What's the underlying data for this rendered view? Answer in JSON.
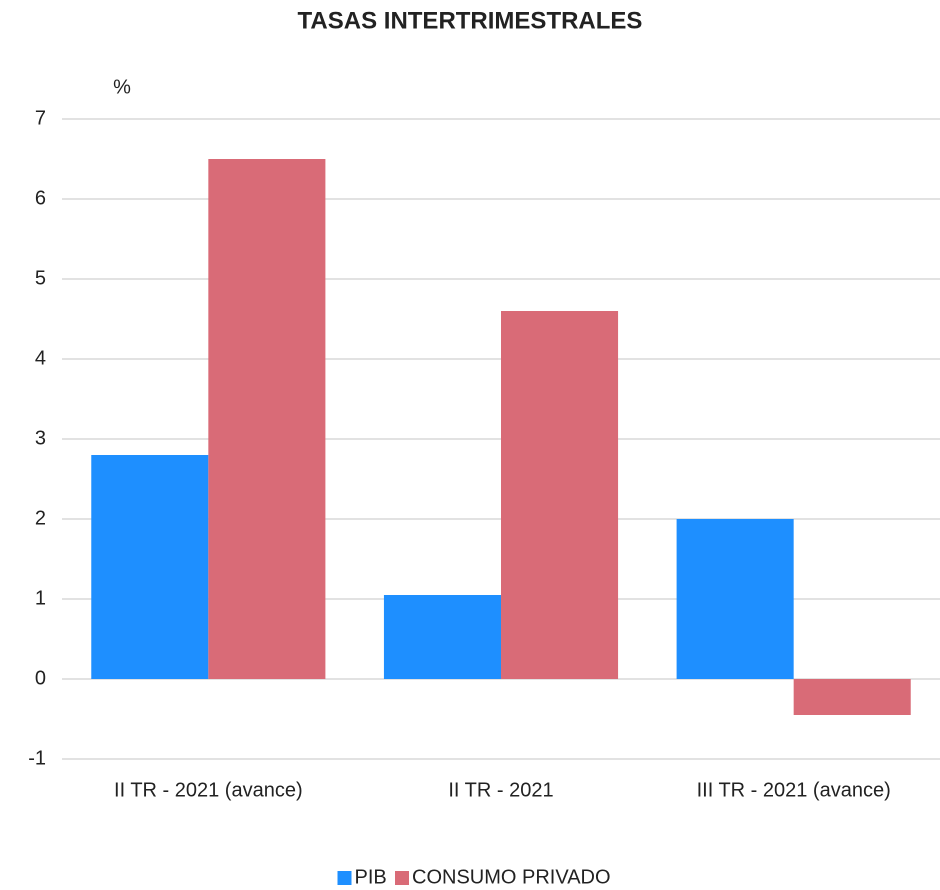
{
  "chart_data": {
    "type": "bar",
    "title": "TASAS INTERTRIMESTRALES",
    "y_label": "%",
    "categories": [
      "II TR - 2021 (avance)",
      "II TR - 2021",
      "III TR - 2021 (avance)"
    ],
    "series": [
      {
        "name": "PIB",
        "color": "#1e8fff",
        "values": [
          2.8,
          1.05,
          2.0
        ]
      },
      {
        "name": "CONSUMO PRIVADO",
        "color": "#d96b77",
        "values": [
          6.5,
          4.6,
          -0.45
        ]
      }
    ],
    "ylim": [
      -1,
      7
    ],
    "yticks": [
      -1,
      0,
      1,
      2,
      3,
      4,
      5,
      6,
      7
    ],
    "grid": true,
    "legend": "bottom"
  }
}
